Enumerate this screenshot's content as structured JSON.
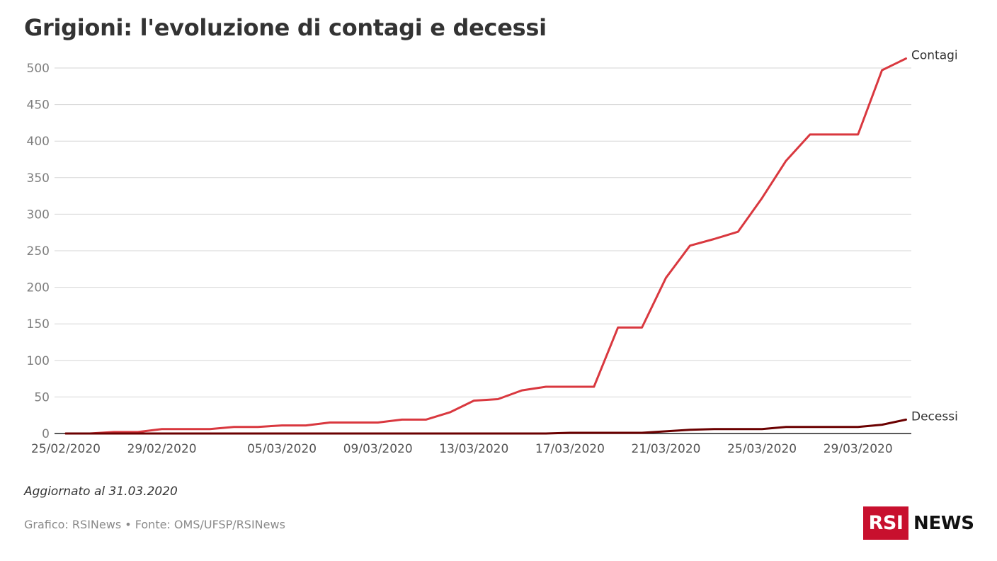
{
  "title": "Grigioni: l'evoluzione di contagi e decessi",
  "updated_note": "Aggiornato al 31.03.2020",
  "source": "Grafico: RSINews • Fonte: OMS/UFSP/RSINews",
  "logo": {
    "box_text": "RSI",
    "text": "NEWS",
    "color": "#c8102e"
  },
  "chart_data": {
    "type": "line",
    "title": "Grigioni: l'evoluzione di contagi e decessi",
    "xlabel": "",
    "ylabel": "",
    "ylim": [
      0,
      500
    ],
    "yticks": [
      0,
      50,
      100,
      150,
      200,
      250,
      300,
      350,
      400,
      450,
      500
    ],
    "xtick_labels": [
      "25/02/2020",
      "29/02/2020",
      "05/03/2020",
      "09/03/2020",
      "13/03/2020",
      "17/03/2020",
      "21/03/2020",
      "25/03/2020",
      "29/03/2020"
    ],
    "grid": true,
    "legend": "direct labels at line ends",
    "x": [
      "25/02/2020",
      "26/02/2020",
      "27/02/2020",
      "28/02/2020",
      "29/02/2020",
      "01/03/2020",
      "02/03/2020",
      "03/03/2020",
      "04/03/2020",
      "05/03/2020",
      "06/03/2020",
      "07/03/2020",
      "08/03/2020",
      "09/03/2020",
      "10/03/2020",
      "11/03/2020",
      "12/03/2020",
      "13/03/2020",
      "14/03/2020",
      "15/03/2020",
      "16/03/2020",
      "17/03/2020",
      "18/03/2020",
      "19/03/2020",
      "20/03/2020",
      "21/03/2020",
      "22/03/2020",
      "23/03/2020",
      "24/03/2020",
      "25/03/2020",
      "26/03/2020",
      "27/03/2020",
      "28/03/2020",
      "29/03/2020",
      "30/03/2020",
      "31/03/2020"
    ],
    "series": [
      {
        "name": "Contagi",
        "color": "#d9383f",
        "values": [
          0,
          0,
          2,
          2,
          6,
          6,
          6,
          9,
          9,
          11,
          11,
          15,
          15,
          15,
          19,
          19,
          29,
          45,
          47,
          59,
          64,
          64,
          64,
          145,
          145,
          213,
          257,
          266,
          276,
          322,
          373,
          409,
          409,
          409,
          497,
          513
        ]
      },
      {
        "name": "Decessi",
        "color": "#6b0000",
        "values": [
          0,
          0,
          0,
          0,
          0,
          0,
          0,
          0,
          0,
          0,
          0,
          0,
          0,
          0,
          0,
          0,
          0,
          0,
          0,
          0,
          0,
          1,
          1,
          1,
          1,
          3,
          5,
          6,
          6,
          6,
          9,
          9,
          9,
          9,
          12,
          19
        ]
      }
    ]
  }
}
